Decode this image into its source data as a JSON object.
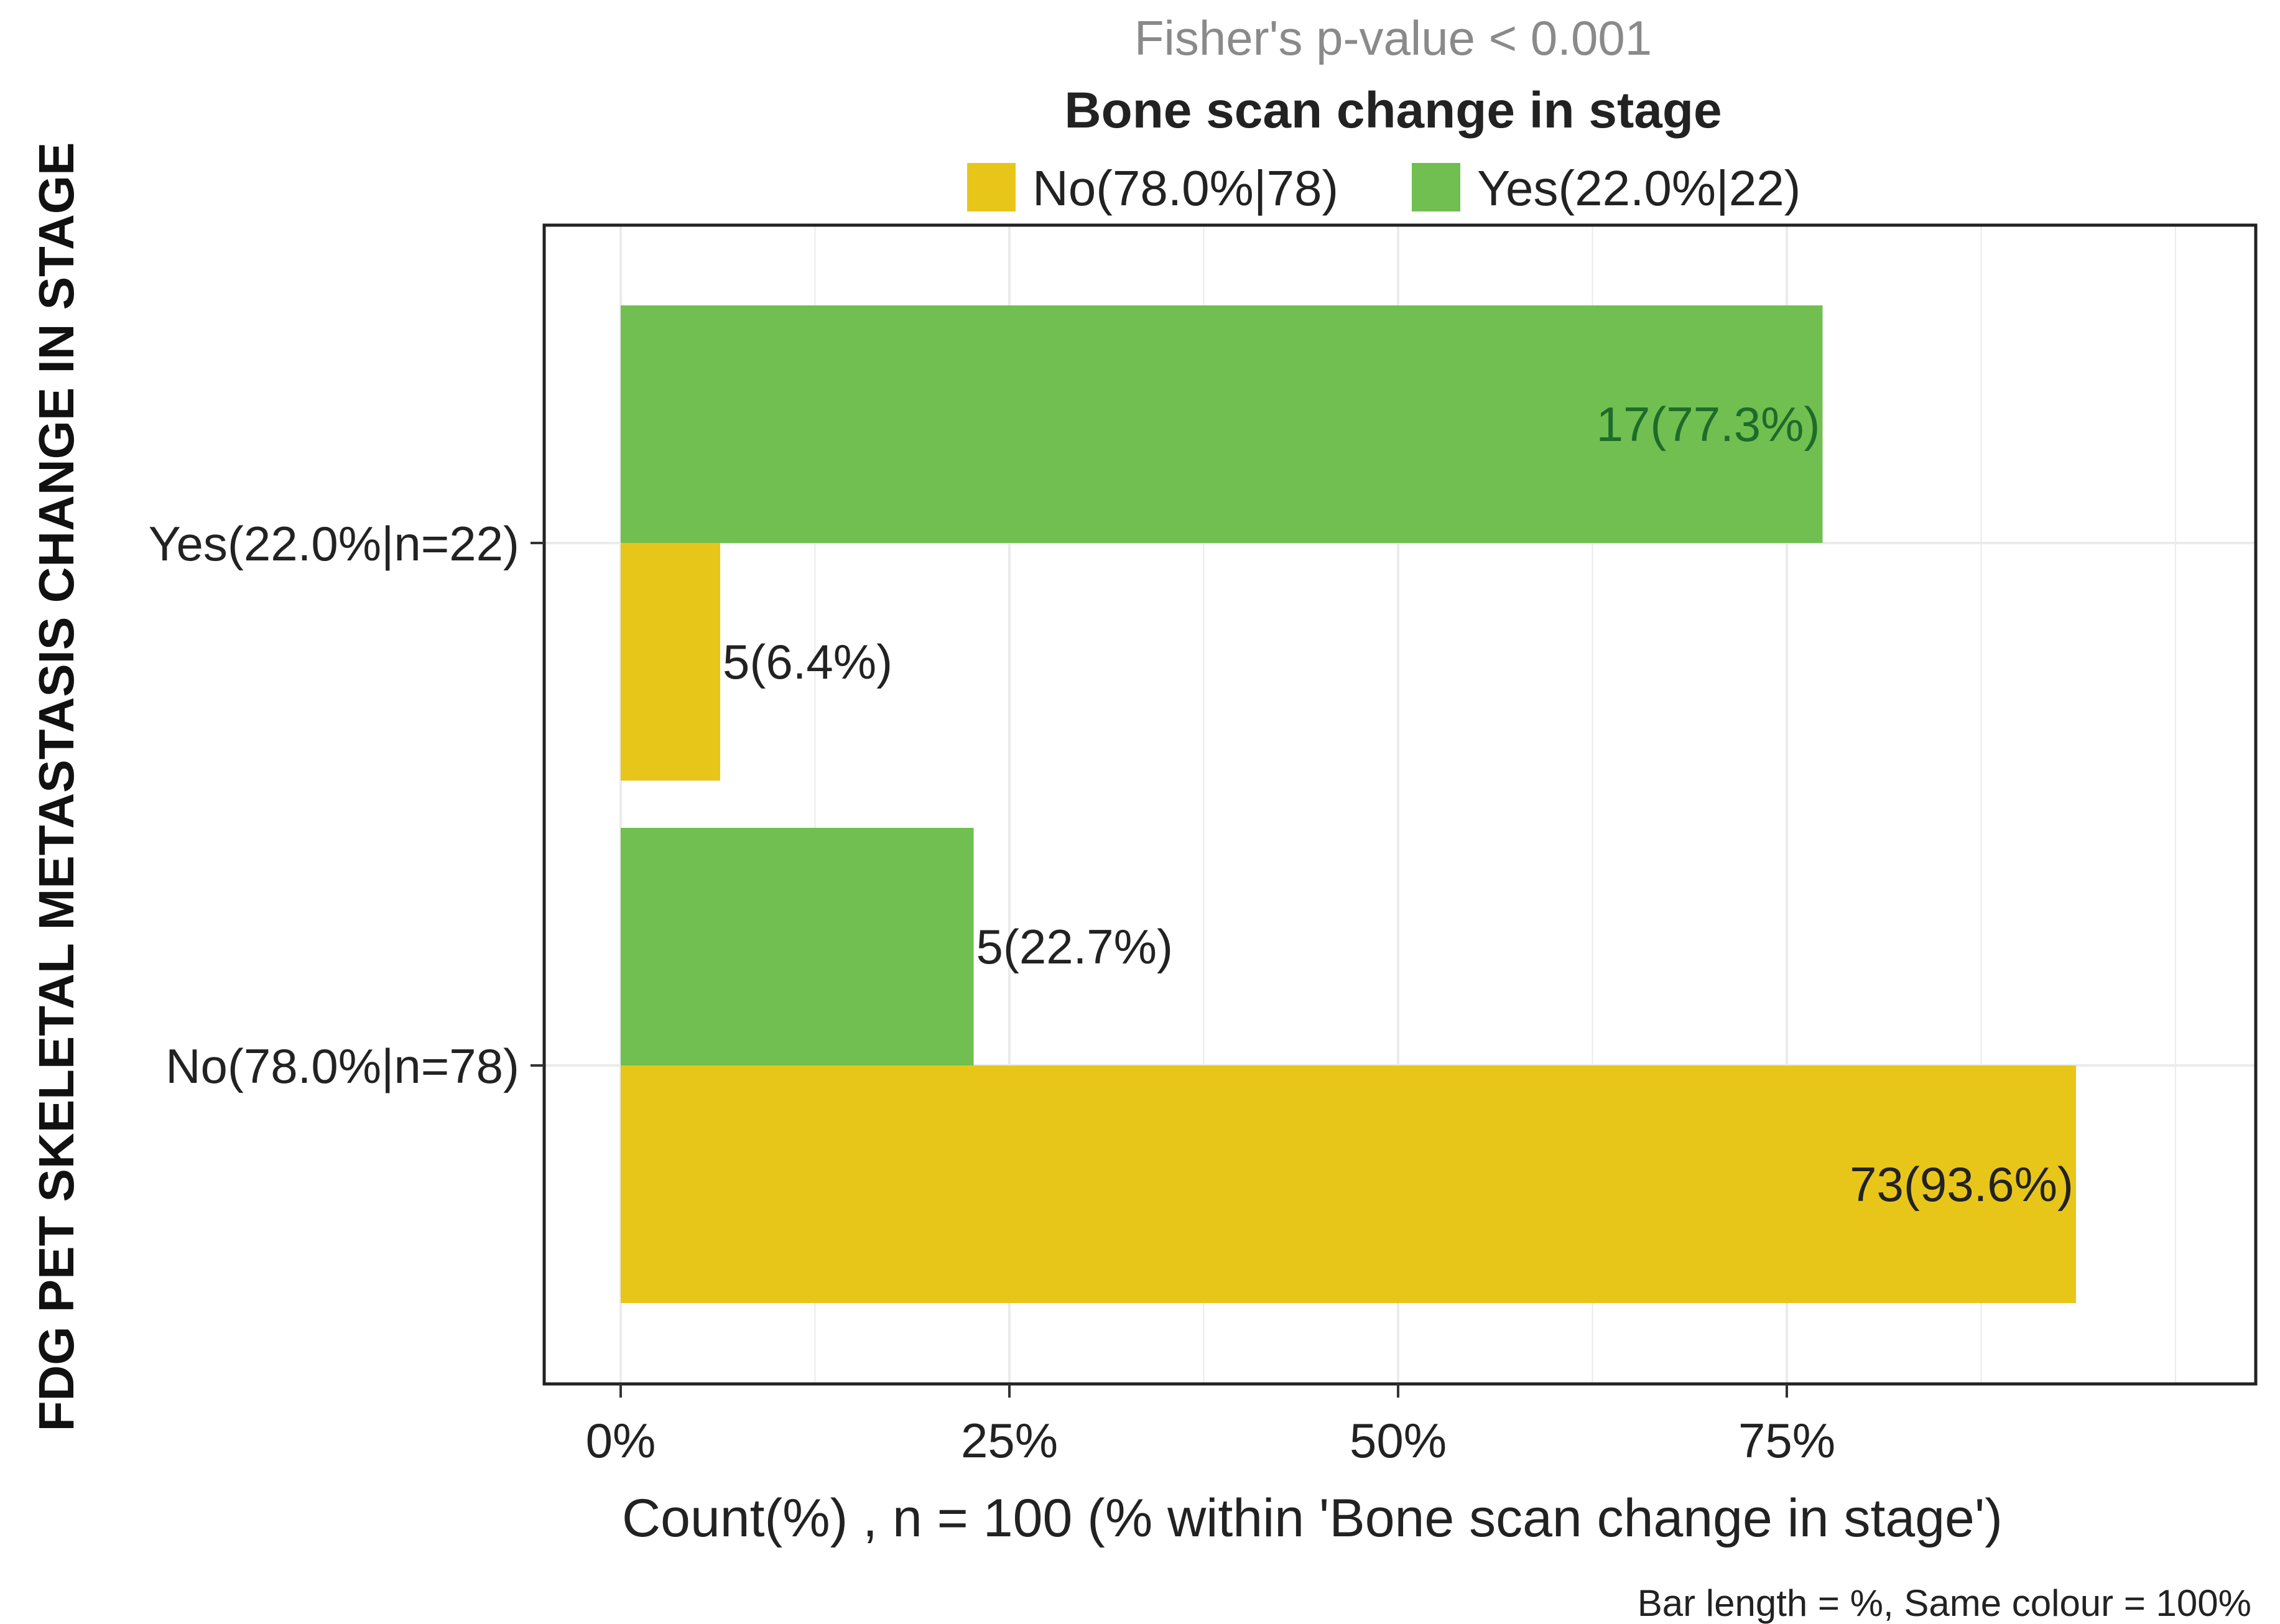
{
  "chart_data": {
    "type": "bar",
    "orientation": "horizontal",
    "subtitle": "Fisher's p-value  < 0.001",
    "legend_title": "Bone scan change in stage",
    "legend_position": "top",
    "categories": [
      "Yes(22.0%|n=22)",
      "No(78.0%|n=78)"
    ],
    "xlabel": "Count(%) , n = 100 (% within 'Bone scan change in stage')",
    "ylabel": "FDG PET SKELETAL METASTASIS CHANGE IN STAGE",
    "caption": "Bar length = %, Same colour = 100%",
    "xlim": [
      0,
      100
    ],
    "xticks": [
      0,
      25,
      50,
      75
    ],
    "xtick_labels": [
      "0%",
      "25%",
      "50%",
      "75%"
    ],
    "grid": true,
    "series": [
      {
        "name": "No(78.0%|78)",
        "color": "#E8C619",
        "values": [
          6.4,
          93.6
        ],
        "labels": [
          "5(6.4%)",
          "73(93.6%)"
        ],
        "label_color": "#222222"
      },
      {
        "name": "Yes(22.0%|22)",
        "color": "#70BF50",
        "values": [
          77.3,
          22.7
        ],
        "labels": [
          "17(77.3%)",
          "5(22.7%)"
        ],
        "label_colors": [
          "#1e6b2a",
          "#222222"
        ]
      }
    ]
  }
}
